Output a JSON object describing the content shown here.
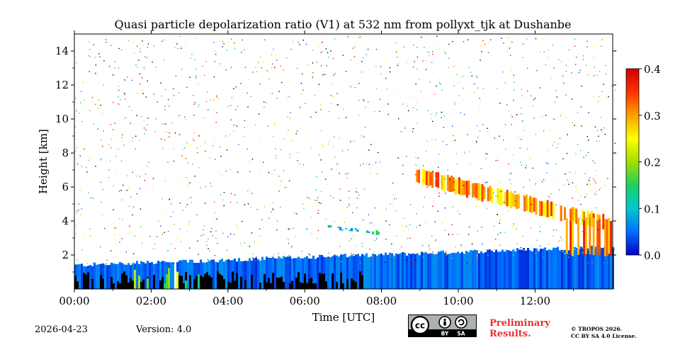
{
  "chart_data": {
    "type": "heatmap",
    "title": "Quasi particle depolarization ratio (V1) at 532 nm from pollyxt_tjk at Dushanbe",
    "xlabel": "Time [UTC]",
    "ylabel": "Height [km]",
    "x_range_hours": [
      0,
      14.1
    ],
    "y_range_km": [
      0,
      15
    ],
    "x_ticks": [
      {
        "value": 0,
        "label": "00:00"
      },
      {
        "value": 2,
        "label": "02:00"
      },
      {
        "value": 4,
        "label": "04:00"
      },
      {
        "value": 6,
        "label": "06:00"
      },
      {
        "value": 8,
        "label": "08:00"
      },
      {
        "value": 10,
        "label": "10:00"
      },
      {
        "value": 12,
        "label": "12:00"
      }
    ],
    "y_ticks": [
      {
        "value": 2,
        "label": "2"
      },
      {
        "value": 4,
        "label": "4"
      },
      {
        "value": 6,
        "label": "6"
      },
      {
        "value": 8,
        "label": "8"
      },
      {
        "value": 10,
        "label": "10"
      },
      {
        "value": 12,
        "label": "12"
      },
      {
        "value": 14,
        "label": "14"
      }
    ],
    "colorbar": {
      "range": [
        0,
        0.4
      ],
      "ticks": [
        {
          "value": 0.0,
          "label": "0.0"
        },
        {
          "value": 0.1,
          "label": "0.1"
        },
        {
          "value": 0.2,
          "label": "0.2"
        },
        {
          "value": 0.3,
          "label": "0.3"
        },
        {
          "value": 0.4,
          "label": "0.4"
        }
      ],
      "colors": [
        "#0000c8",
        "#0070ff",
        "#00c8d0",
        "#20d060",
        "#a0e000",
        "#ffff00",
        "#ffa000",
        "#ff3000",
        "#d00000"
      ]
    },
    "features": [
      {
        "name": "boundary-layer",
        "t_start": 0,
        "t_end": 14.1,
        "h_bottom": 0,
        "h_top_start": 1.4,
        "h_top_end": 2.5,
        "value": 0.03
      },
      {
        "name": "low-depol-dense-aerosol",
        "t_start": 0,
        "t_end": 7.5,
        "h_bottom": 0,
        "h_top": 0.8,
        "value": "below-threshold"
      },
      {
        "name": "elevated-layer-1",
        "t_start": 6.6,
        "t_end": 7.9,
        "h_bottom": 3.2,
        "h_top": 3.7,
        "value": 0.1
      },
      {
        "name": "elevated-dust-layer",
        "t_start": 8.9,
        "t_end": 13.8,
        "h_bottom": 4.0,
        "h_top": 7.2,
        "value": 0.3
      },
      {
        "name": "lower-dust-plume",
        "t_start": 12.8,
        "t_end": 14.0,
        "h_bottom": 1.9,
        "h_top": 4.2,
        "value": 0.33
      }
    ]
  },
  "footer": {
    "date": "2026-04-23",
    "version": "Version: 4.0",
    "preliminary": [
      "Preliminary",
      "Results."
    ],
    "copyright": [
      "© TROPOS 2026.",
      "CC BY SA 4.0 License."
    ],
    "license_badge": {
      "cc": "cc",
      "by": "BY",
      "sa": "SA"
    }
  }
}
